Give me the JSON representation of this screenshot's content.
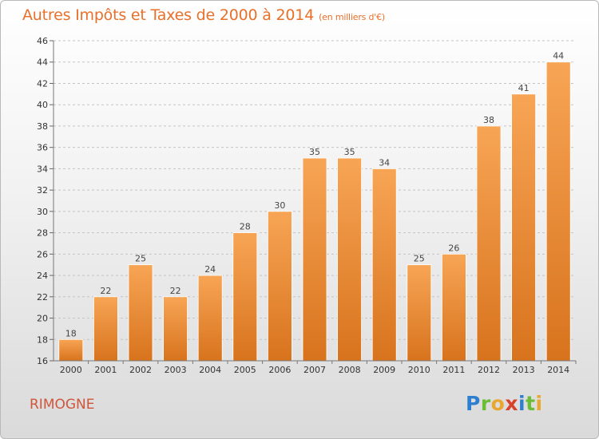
{
  "header": {
    "title": "Autres Impôts et Taxes de 2000 à 2014",
    "unit": "(en milliers d'€)"
  },
  "footer": {
    "commune": "RIMOGNE",
    "logo": [
      "P",
      "r",
      "o",
      "x",
      "i",
      "t",
      "i"
    ]
  },
  "colors": {
    "bar_top": "#f7a555",
    "bar_bottom": "#d8731d",
    "title": "#e8702a",
    "commune": "#d0563a"
  },
  "chart_data": {
    "type": "bar",
    "title": "Autres Impôts et Taxes de 2000 à 2014",
    "subtitle": "(en milliers d'€)",
    "categories": [
      "2000",
      "2001",
      "2002",
      "2003",
      "2004",
      "2005",
      "2006",
      "2007",
      "2008",
      "2009",
      "2010",
      "2011",
      "2012",
      "2013",
      "2014"
    ],
    "values": [
      18,
      22,
      25,
      22,
      24,
      28,
      30,
      35,
      35,
      34,
      25,
      26,
      38,
      41,
      44
    ],
    "ylim": [
      16,
      46
    ],
    "yticks": [
      16,
      18,
      20,
      22,
      24,
      26,
      28,
      30,
      32,
      34,
      36,
      38,
      40,
      42,
      44,
      46
    ],
    "grid": "horizontal dashed",
    "data_labels": true
  }
}
